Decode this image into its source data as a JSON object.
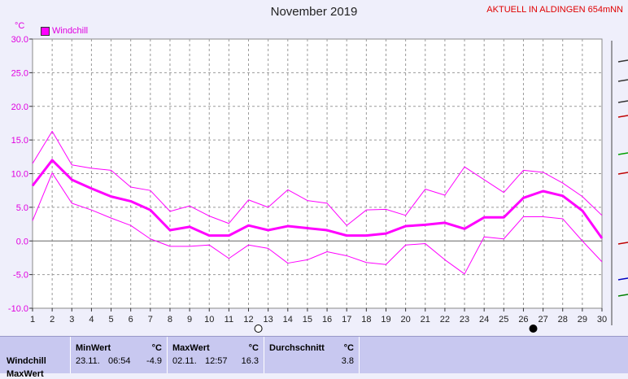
{
  "header": {
    "title": "November 2019",
    "station": "AKTUELL IN ALDINGEN 654mNN",
    "unit": "°C",
    "legend_label": "Windchill"
  },
  "colors": {
    "series": "#ff00ff",
    "axis_text": "#e000e0",
    "station": "#e00000",
    "background": "#efeffb"
  },
  "chart_data": {
    "type": "line",
    "title": "November 2019",
    "ylabel": "°C",
    "ylim": [
      -10,
      30
    ],
    "yticks": [
      "30.0",
      "25.0",
      "20.0",
      "15.0",
      "10.0",
      "5.0",
      "0.0",
      "-5.0",
      "-10.0"
    ],
    "x": [
      1,
      2,
      3,
      4,
      5,
      6,
      7,
      8,
      9,
      10,
      11,
      12,
      13,
      14,
      15,
      16,
      17,
      18,
      19,
      20,
      21,
      22,
      23,
      24,
      25,
      26,
      27,
      28,
      29,
      30
    ],
    "grid": true,
    "series": [
      {
        "name": "Windchill",
        "role": "mean",
        "values": [
          8.2,
          12.0,
          9.1,
          7.8,
          6.6,
          5.9,
          4.6,
          1.6,
          2.1,
          0.8,
          0.8,
          2.3,
          1.6,
          2.2,
          1.9,
          1.6,
          0.8,
          0.8,
          1.1,
          2.2,
          2.4,
          2.7,
          1.8,
          3.5,
          3.5,
          6.4,
          7.4,
          6.7,
          4.5,
          0.4
        ]
      },
      {
        "role": "max",
        "values": [
          11.5,
          16.3,
          11.3,
          10.8,
          10.5,
          8.0,
          7.5,
          4.4,
          5.2,
          3.7,
          2.6,
          6.1,
          5.0,
          7.6,
          6.0,
          5.6,
          2.3,
          4.6,
          4.7,
          3.8,
          7.7,
          6.8,
          11.0,
          9.1,
          7.2,
          10.5,
          10.2,
          8.6,
          6.6,
          3.8
        ]
      },
      {
        "role": "min",
        "values": [
          3.0,
          10.1,
          5.6,
          4.6,
          3.4,
          2.3,
          0.3,
          -0.8,
          -0.8,
          -0.6,
          -2.6,
          -0.6,
          -1.1,
          -3.3,
          -2.8,
          -1.6,
          -2.2,
          -3.2,
          -3.5,
          -0.6,
          -0.4,
          -2.8,
          -4.9,
          0.6,
          0.3,
          3.6,
          3.6,
          3.3,
          0.0,
          -3.1
        ]
      }
    ],
    "markers": [
      {
        "day": 12.5,
        "symbol": "open-circle"
      },
      {
        "day": 26.5,
        "symbol": "filled-circle"
      }
    ]
  },
  "stats": {
    "row_label": "Windchill",
    "row_label_2": "MaxWert",
    "min": {
      "header": "MinWert",
      "unit": "°C",
      "date": "23.11.",
      "time": "06:54",
      "value": "-4.9"
    },
    "max": {
      "header": "MaxWert",
      "unit": "°C",
      "date": "02.11.",
      "time": "12:57",
      "value": "16.3"
    },
    "avg": {
      "header": "Durchschnitt",
      "unit": "°C",
      "value": "3.8"
    }
  }
}
